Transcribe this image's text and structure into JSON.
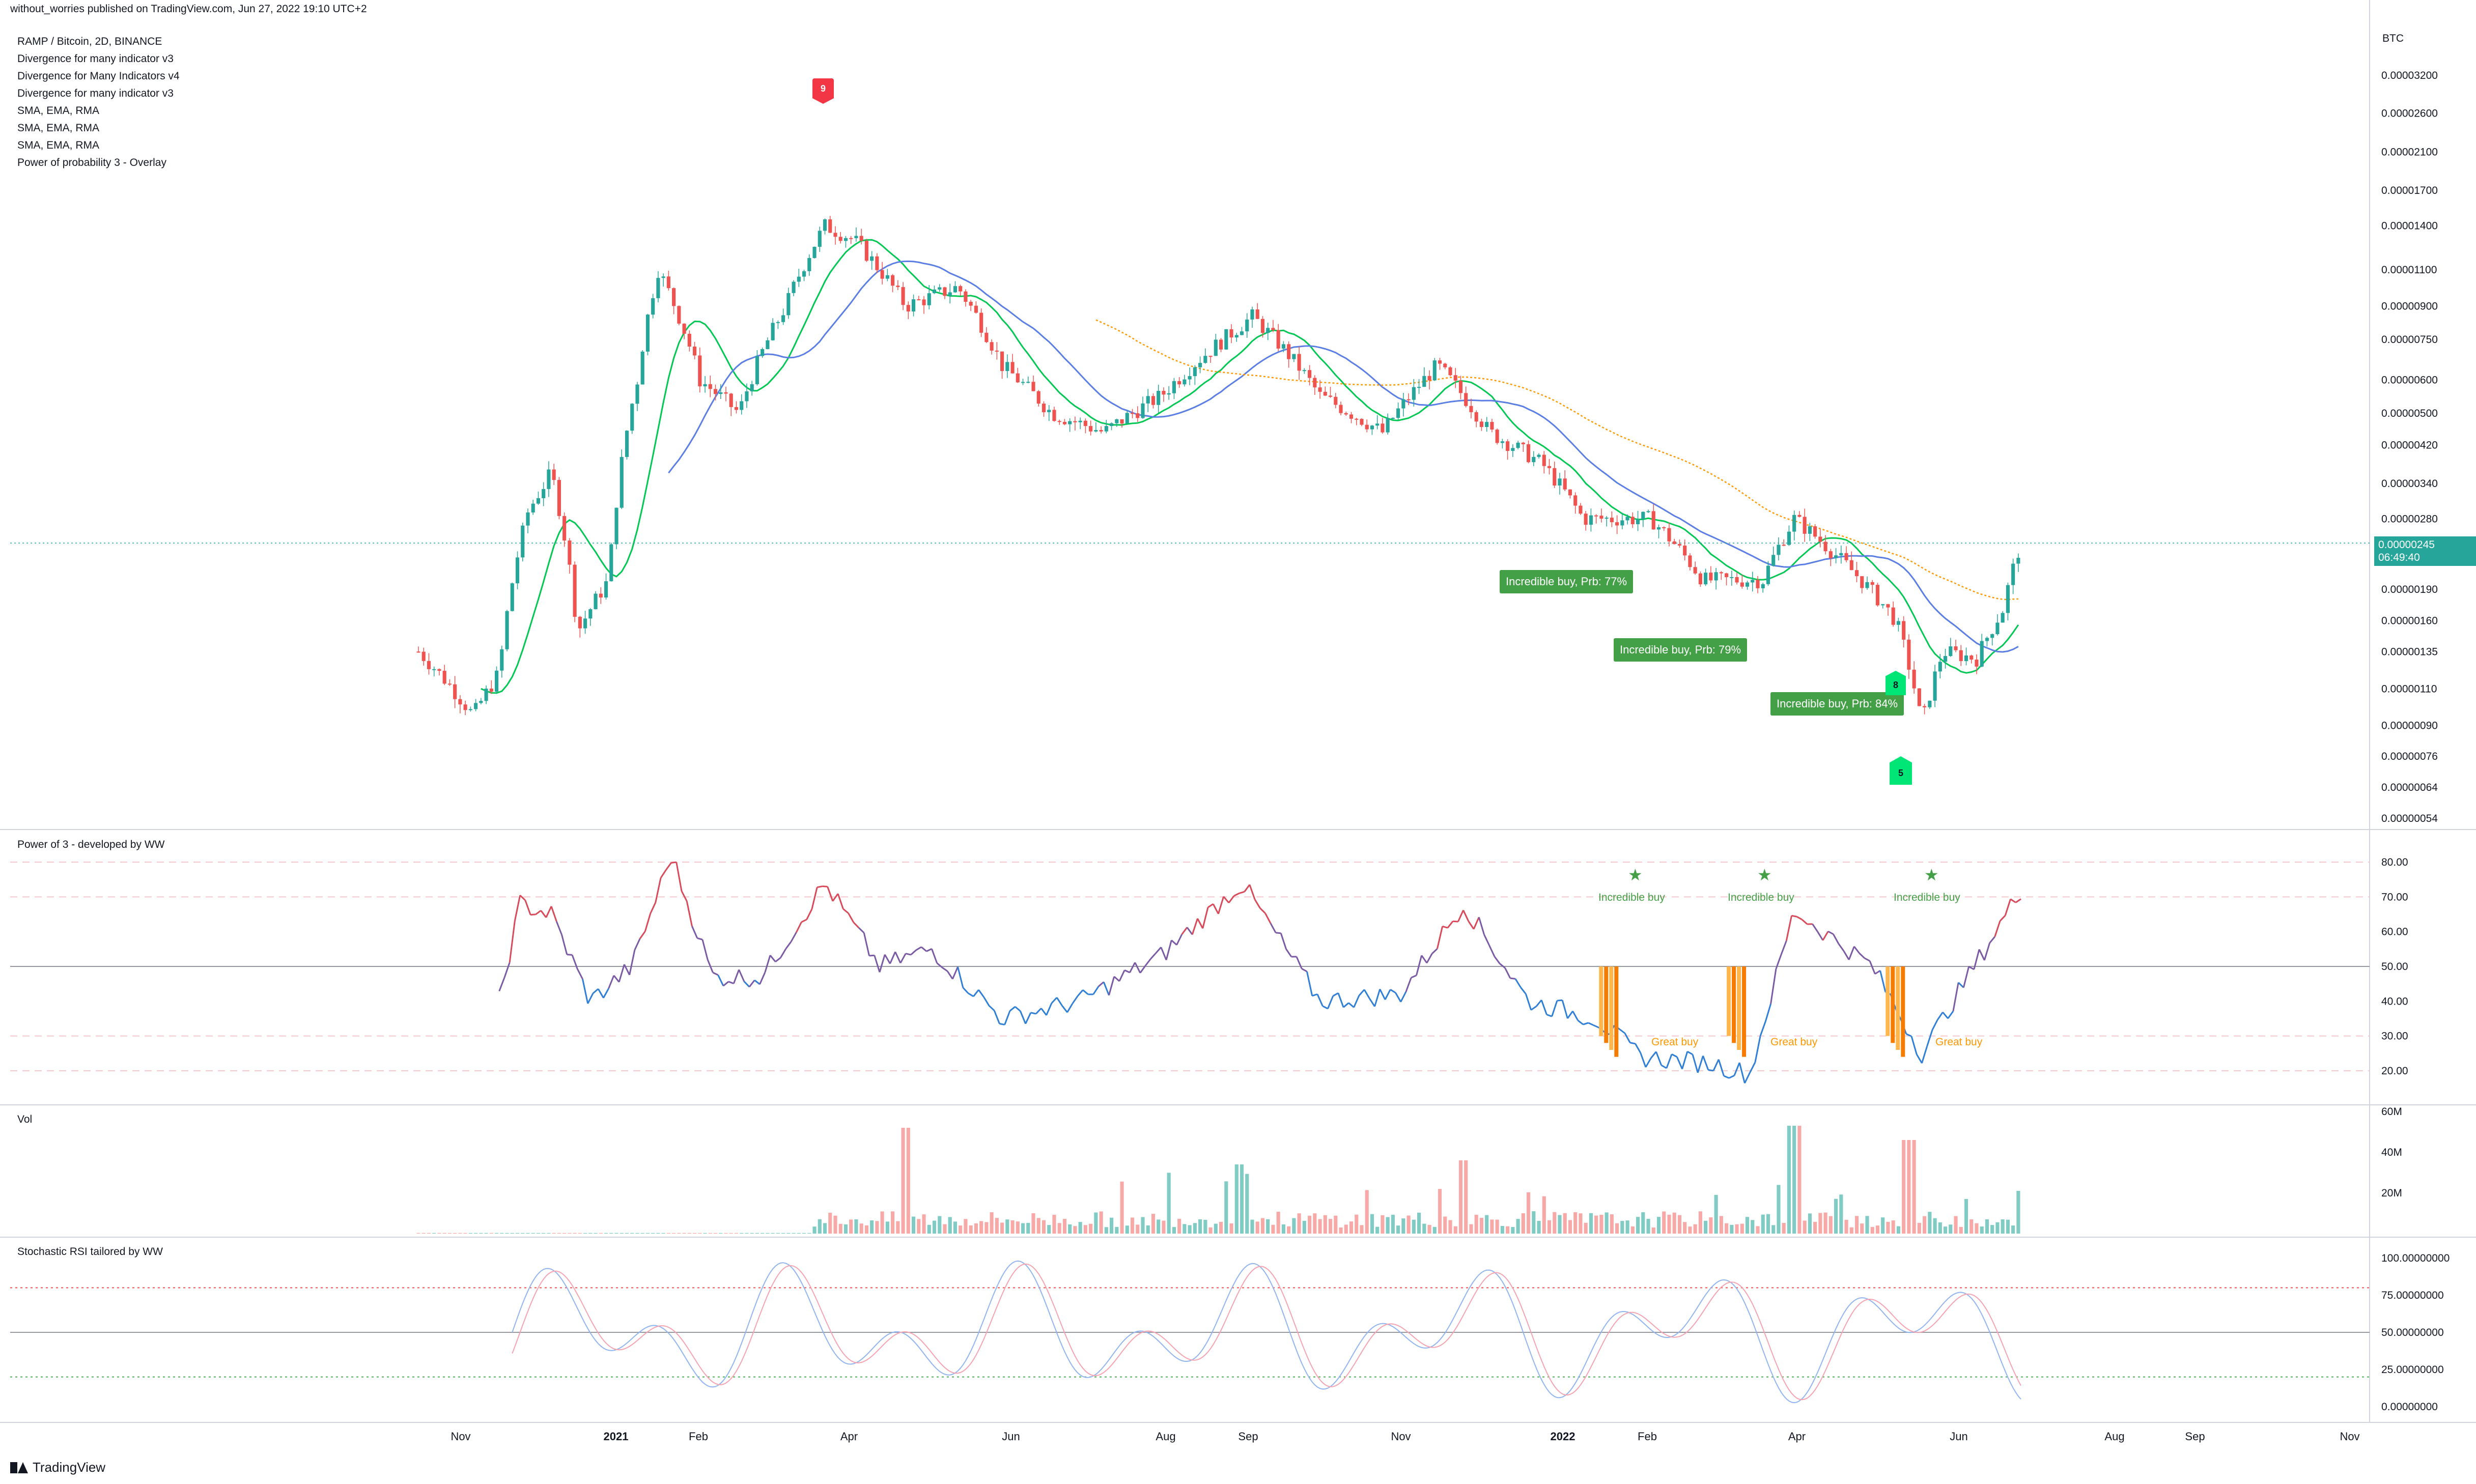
{
  "header": {
    "published_line": "without_worries published on TradingView.com, Jun 27, 2022 19:10 UTC+2"
  },
  "legend": [
    "RAMP / Bitcoin, 2D, BINANCE",
    "Divergence for many indicator v3",
    "Divergence for Many Indicators v4",
    "Divergence for many indicator v3",
    "SMA, EMA, RMA",
    "SMA, EMA, RMA",
    "SMA, EMA, RMA",
    "Power of probability 3 - Overlay"
  ],
  "colors": {
    "up": "#26a69a",
    "down": "#ef5350",
    "ema_fast": "#00c853",
    "ema_slow": "#5b7ee5",
    "sma_long": "#ff9800",
    "bubble": "#43a047",
    "marker_green": "#00e676",
    "marker_red": "#f23645"
  },
  "price_axis": {
    "currency": "BTC",
    "labels": [
      "0.00003200",
      "0.00002600",
      "0.00002100",
      "0.00001700",
      "0.00001400",
      "0.00001100",
      "0.00000900",
      "0.00000750",
      "0.00000600",
      "0.00000500",
      "0.00000420",
      "0.00000340",
      "0.00000280",
      "0.00000190",
      "0.00000160",
      "0.00000135",
      "0.00000110",
      "0.00000090",
      "0.00000076",
      "0.00000064",
      "0.00000054"
    ],
    "current_price": "0.00000245",
    "countdown": "06:49:40"
  },
  "time_axis": {
    "labels": [
      "Nov",
      "2021",
      "Feb",
      "Apr",
      "Jun",
      "Aug",
      "Sep",
      "Nov",
      "2022",
      "Feb",
      "Apr",
      "Jun",
      "Aug",
      "Sep",
      "Nov"
    ]
  },
  "annotations": {
    "bubbles": [
      "Incredible buy, Prb: 77%",
      "Incredible buy, Prb: 79%",
      "Incredible buy, Prb: 84%"
    ],
    "markers": [
      "9",
      "8",
      "5"
    ]
  },
  "power_pane": {
    "title": "Power of 3 - developed by WW",
    "y_labels": [
      "80.00",
      "70.00",
      "60.00",
      "50.00",
      "40.00",
      "30.00",
      "20.00"
    ],
    "incredible_label": "Incredible buy",
    "great_label": "Great buy",
    "star": "★"
  },
  "volume_pane": {
    "title": "Vol",
    "y_labels": [
      "60M",
      "40M",
      "20M"
    ]
  },
  "stoch_pane": {
    "title": "Stochastic RSI tailored by WW",
    "y_labels": [
      "100.00000000",
      "75.00000000",
      "50.00000000",
      "25.00000000",
      "0.00000000"
    ]
  },
  "footer": {
    "brand": "TradingView"
  },
  "chart_data": [
    {
      "type": "candlestick",
      "title": "RAMP / Bitcoin, 2D, BINANCE",
      "ylabel": "BTC",
      "y_scale": "log",
      "ylim": [
        5.4e-07,
        3.5e-05
      ],
      "approx_close_path": [
        {
          "date": "2020-10-20",
          "close": 1.35e-06
        },
        {
          "date": "2020-11-10",
          "close": 9.5e-07
        },
        {
          "date": "2020-11-20",
          "close": 1.2e-06
        },
        {
          "date": "2020-12-01",
          "close": 2.9e-06
        },
        {
          "date": "2020-12-10",
          "close": 3.6e-06
        },
        {
          "date": "2020-12-20",
          "close": 1.5e-06
        },
        {
          "date": "2021-01-01",
          "close": 2e-06
        },
        {
          "date": "2021-01-12",
          "close": 6e-06
        },
        {
          "date": "2021-01-20",
          "close": 1.1e-05
        },
        {
          "date": "2021-02-05",
          "close": 6e-06
        },
        {
          "date": "2021-02-20",
          "close": 5e-06
        },
        {
          "date": "2021-03-10",
          "close": 9e-06
        },
        {
          "date": "2021-03-25",
          "close": 1.4e-05
        },
        {
          "date": "2021-04-05",
          "close": 1.3e-05
        },
        {
          "date": "2021-04-25",
          "close": 9e-06
        },
        {
          "date": "2021-05-15",
          "close": 1e-05
        },
        {
          "date": "2021-06-01",
          "close": 6.5e-06
        },
        {
          "date": "2021-06-20",
          "close": 5e-06
        },
        {
          "date": "2021-07-10",
          "close": 4.5e-06
        },
        {
          "date": "2021-08-01",
          "close": 5.5e-06
        },
        {
          "date": "2021-08-25",
          "close": 7.5e-06
        },
        {
          "date": "2021-09-05",
          "close": 8.5e-06
        },
        {
          "date": "2021-10-01",
          "close": 5.5e-06
        },
        {
          "date": "2021-10-25",
          "close": 4.5e-06
        },
        {
          "date": "2021-11-15",
          "close": 6.5e-06
        },
        {
          "date": "2021-12-05",
          "close": 4.5e-06
        },
        {
          "date": "2021-12-25",
          "close": 3.8e-06
        },
        {
          "date": "2022-01-10",
          "close": 2.8e-06
        },
        {
          "date": "2022-02-05",
          "close": 2.8e-06
        },
        {
          "date": "2022-02-25",
          "close": 2e-06
        },
        {
          "date": "2022-03-20",
          "close": 2e-06
        },
        {
          "date": "2022-04-01",
          "close": 2.8e-06
        },
        {
          "date": "2022-04-20",
          "close": 2.2e-06
        },
        {
          "date": "2022-05-10",
          "close": 1.6e-06
        },
        {
          "date": "2022-05-20",
          "close": 9e-07
        },
        {
          "date": "2022-05-28",
          "close": 1.35e-06
        },
        {
          "date": "2022-06-10",
          "close": 1.3e-06
        },
        {
          "date": "2022-06-20",
          "close": 1.7e-06
        },
        {
          "date": "2022-06-27",
          "close": 2.45e-06
        }
      ]
    },
    {
      "type": "line",
      "title": "Power of 3 - developed by WW",
      "ylim": [
        15,
        85
      ],
      "approx_values": [
        {
          "date": "2020-11-20",
          "value": 40
        },
        {
          "date": "2020-11-28",
          "value": 68
        },
        {
          "date": "2020-12-10",
          "value": 65
        },
        {
          "date": "2020-12-25",
          "value": 40
        },
        {
          "date": "2021-01-10",
          "value": 50
        },
        {
          "date": "2021-01-25",
          "value": 82
        },
        {
          "date": "2021-02-10",
          "value": 47
        },
        {
          "date": "2021-03-01",
          "value": 47
        },
        {
          "date": "2021-03-25",
          "value": 74
        },
        {
          "date": "2021-04-15",
          "value": 50
        },
        {
          "date": "2021-05-05",
          "value": 55
        },
        {
          "date": "2021-06-01",
          "value": 35
        },
        {
          "date": "2021-07-01",
          "value": 40
        },
        {
          "date": "2021-08-01",
          "value": 53
        },
        {
          "date": "2021-09-01",
          "value": 74
        },
        {
          "date": "2021-10-01",
          "value": 40
        },
        {
          "date": "2021-11-01",
          "value": 42
        },
        {
          "date": "2021-11-25",
          "value": 68
        },
        {
          "date": "2021-12-20",
          "value": 40
        },
        {
          "date": "2022-01-15",
          "value": 35
        },
        {
          "date": "2022-02-01",
          "value": 24
        },
        {
          "date": "2022-03-01",
          "value": 22
        },
        {
          "date": "2022-03-15",
          "value": 19
        },
        {
          "date": "2022-04-01",
          "value": 66
        },
        {
          "date": "2022-05-01",
          "value": 50
        },
        {
          "date": "2022-05-20",
          "value": 25
        },
        {
          "date": "2022-06-01",
          "value": 40
        },
        {
          "date": "2022-06-27",
          "value": 72
        }
      ]
    },
    {
      "type": "bar",
      "title": "Vol",
      "ylim": [
        0,
        60000000
      ],
      "approx_peaks": [
        {
          "date": "2021-04-25",
          "value": 52000000
        },
        {
          "date": "2021-09-01",
          "value": 34000000
        },
        {
          "date": "2021-11-25",
          "value": 36000000
        },
        {
          "date": "2022-04-01",
          "value": 53000000
        },
        {
          "date": "2022-05-15",
          "value": 46000000
        },
        {
          "date": "2022-06-27",
          "value": 21000000
        }
      ]
    },
    {
      "type": "line",
      "title": "Stochastic RSI tailored by WW",
      "ylim": [
        0,
        100
      ],
      "reference_lines": [
        80,
        50,
        20
      ]
    }
  ]
}
